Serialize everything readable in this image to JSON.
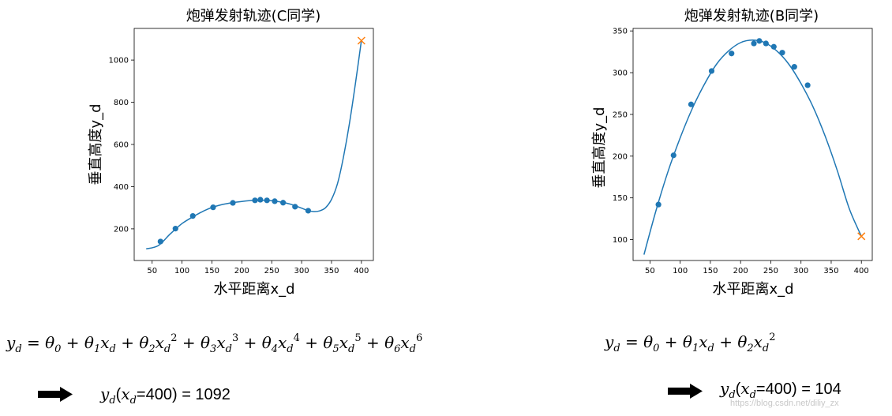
{
  "chart_data": [
    {
      "type": "scatter",
      "title": "炮弹发射轨迹(C同学)",
      "xlabel": "水平距离x_d",
      "ylabel": "垂直高度y_d",
      "xlim": [
        20,
        420
      ],
      "ylim": [
        50,
        1150
      ],
      "xticks": [
        "50",
        "100",
        "150",
        "200",
        "250",
        "300",
        "350",
        "400"
      ],
      "yticks": [
        "200",
        "400",
        "600",
        "800",
        "1000"
      ],
      "grid": false,
      "points": {
        "x": [
          64,
          89,
          118,
          152,
          185,
          222,
          231,
          242,
          255,
          269,
          289,
          311
        ],
        "y": [
          140,
          201,
          261,
          302,
          323,
          335,
          338,
          335,
          331,
          324,
          305,
          286
        ]
      },
      "fit": {
        "x": [
          40,
          60,
          80,
          100,
          120,
          140,
          160,
          180,
          200,
          220,
          240,
          260,
          280,
          300,
          310,
          320,
          330,
          340,
          350,
          360,
          370,
          380,
          390,
          400
        ],
        "y": [
          105,
          120,
          175,
          225,
          260,
          290,
          310,
          322,
          330,
          335,
          335,
          330,
          318,
          298,
          287,
          282,
          285,
          300,
          340,
          415,
          540,
          700,
          890,
          1092
        ]
      },
      "prediction": {
        "x": 400,
        "y": 1092,
        "marker": "x"
      },
      "colors": {
        "series": "#1f77b4",
        "prediction": "#ff7f0e"
      }
    },
    {
      "type": "scatter",
      "title": "炮弹发射轨迹(B同学)",
      "xlabel": "水平距离x_d",
      "ylabel": "垂直高度y_d",
      "xlim": [
        22,
        418
      ],
      "ylim": [
        75,
        353
      ],
      "xticks": [
        "50",
        "100",
        "150",
        "200",
        "250",
        "300",
        "350",
        "400"
      ],
      "yticks": [
        "100",
        "150",
        "200",
        "250",
        "300",
        "350"
      ],
      "grid": false,
      "points": {
        "x": [
          64,
          89,
          118,
          152,
          185,
          222,
          231,
          242,
          255,
          269,
          289,
          311
        ],
        "y": [
          142,
          201,
          262,
          302,
          323,
          335,
          338,
          335,
          331,
          324,
          307,
          285
        ]
      },
      "fit": {
        "x": [
          40,
          60,
          80,
          100,
          120,
          140,
          160,
          180,
          200,
          220,
          240,
          260,
          280,
          300,
          320,
          340,
          360,
          380,
          400
        ],
        "y": [
          82,
          135,
          182,
          222,
          257,
          286,
          310,
          326,
          336,
          339,
          336,
          326,
          310,
          287,
          259,
          224,
          183,
          137,
          104
        ]
      },
      "prediction": {
        "x": 400,
        "y": 104,
        "marker": "x"
      },
      "colors": {
        "series": "#1f77b4",
        "prediction": "#ff7f0e"
      }
    }
  ],
  "equations": {
    "left": "y_d = θ_0 + θ_1 x_d + θ_2 x_d^2 + θ_3 x_d^3 + θ_4 x_d^4 + θ_5 x_d^5 + θ_6 x_d^6",
    "right": "y_d = θ_0 + θ_1 x_d + θ_2 x_d^2"
  },
  "results": {
    "left": {
      "lhs": "y_d(x_d=400)",
      "value": "= 1092"
    },
    "right": {
      "lhs": "y_d(x_d=400)",
      "value": "= 104"
    }
  },
  "watermark": "https://blog.csdn.net/diliy_zx"
}
